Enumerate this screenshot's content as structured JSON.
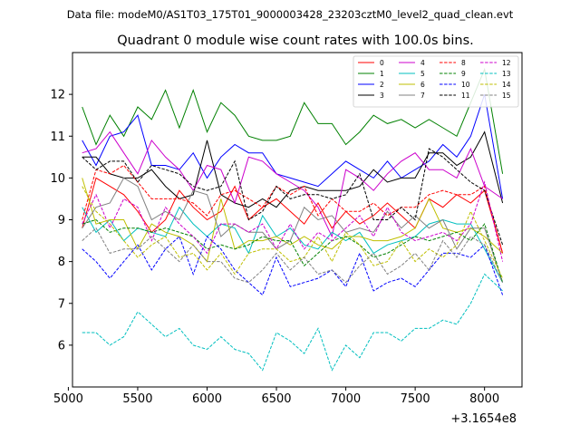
{
  "chart_data": {
    "type": "line",
    "suptitle": "Data file: modeM0/AS1T03_175T01_9000003428_23203cztM0_level2_quad_clean.evt",
    "title": "Quadrant 0 module wise count rates with 100.0s bins.",
    "xlabel": "",
    "ylabel": "",
    "x_offset_label": "+3.1654e8",
    "xlim": [
      5030,
      8270
    ],
    "ylim": [
      5.0,
      13.0
    ],
    "xticks": [
      5000,
      5500,
      6000,
      6500,
      7000,
      7500,
      8000
    ],
    "xtick_labels": [
      "5000",
      "5500",
      "6000",
      "6500",
      "7000",
      "7500",
      "8000"
    ],
    "yticks": [
      6,
      7,
      8,
      9,
      10,
      11,
      12
    ],
    "ytick_labels": [
      "6",
      "7",
      "8",
      "9",
      "10",
      "11",
      "12"
    ],
    "x": [
      5100,
      5200,
      5300,
      5400,
      5500,
      5600,
      5700,
      5800,
      5900,
      6000,
      6100,
      6200,
      6300,
      6400,
      6500,
      6600,
      6700,
      6800,
      6900,
      7000,
      7100,
      7200,
      7300,
      7400,
      7500,
      7600,
      7700,
      7800,
      7900,
      8000,
      8130
    ],
    "legend_position": "top-right",
    "series": [
      {
        "name": "0",
        "color": "#ff0000",
        "dash": "solid",
        "values": [
          8.8,
          10.0,
          9.8,
          9.6,
          9.2,
          8.7,
          9.0,
          9.7,
          9.3,
          9.0,
          9.2,
          9.8,
          9.0,
          9.3,
          9.5,
          9.2,
          8.9,
          9.4,
          8.8,
          9.2,
          8.9,
          9.1,
          9.4,
          9.1,
          8.8,
          9.5,
          9.3,
          9.6,
          9.4,
          9.7,
          8.2
        ]
      },
      {
        "name": "1",
        "color": "#008000",
        "dash": "solid",
        "values": [
          11.7,
          10.8,
          11.5,
          11.0,
          11.7,
          11.4,
          12.1,
          11.2,
          12.1,
          11.1,
          11.8,
          11.5,
          11.0,
          10.9,
          10.9,
          11.0,
          11.8,
          11.3,
          11.3,
          10.8,
          11.1,
          11.5,
          11.3,
          11.4,
          11.2,
          11.4,
          11.2,
          11.0,
          11.8,
          12.6,
          10.1
        ]
      },
      {
        "name": "2",
        "color": "#0000ff",
        "dash": "solid",
        "values": [
          10.9,
          10.3,
          11.0,
          11.1,
          11.5,
          10.3,
          10.3,
          10.2,
          10.6,
          10.0,
          10.5,
          10.8,
          10.6,
          10.6,
          10.1,
          10.0,
          9.9,
          9.8,
          10.1,
          10.4,
          10.2,
          10.0,
          10.4,
          10.0,
          10.2,
          10.4,
          10.8,
          10.5,
          11.0,
          12.0,
          9.5
        ]
      },
      {
        "name": "3",
        "color": "#000000",
        "dash": "solid",
        "values": [
          10.5,
          10.5,
          10.1,
          10.0,
          10.0,
          10.2,
          9.8,
          9.5,
          9.6,
          10.9,
          9.6,
          9.4,
          9.3,
          9.5,
          9.3,
          9.7,
          9.8,
          9.7,
          9.7,
          9.7,
          9.8,
          10.2,
          9.9,
          10.0,
          10.0,
          10.6,
          10.6,
          10.3,
          10.5,
          11.1,
          9.4
        ]
      },
      {
        "name": "4",
        "color": "#cc00cc",
        "dash": "solid",
        "values": [
          10.6,
          10.7,
          11.1,
          10.6,
          10.1,
          10.9,
          10.5,
          10.2,
          9.7,
          10.3,
          10.2,
          9.4,
          10.5,
          10.4,
          10.1,
          9.9,
          9.7,
          9.3,
          8.6,
          10.2,
          10.0,
          9.7,
          10.1,
          10.4,
          10.6,
          10.2,
          10.2,
          10.0,
          10.7,
          9.8,
          9.5
        ]
      },
      {
        "name": "5",
        "color": "#00bfbf",
        "dash": "solid",
        "values": [
          9.3,
          8.7,
          9.0,
          8.5,
          8.8,
          8.7,
          8.6,
          9.3,
          8.9,
          8.6,
          8.9,
          8.8,
          8.2,
          9.1,
          8.6,
          8.8,
          8.4,
          8.3,
          8.7,
          8.5,
          8.7,
          8.2,
          8.4,
          8.5,
          8.6,
          8.9,
          9.0,
          8.9,
          8.9,
          8.3,
          7.5
        ]
      },
      {
        "name": "6",
        "color": "#bfbf00",
        "dash": "solid",
        "values": [
          10.0,
          8.9,
          9.0,
          9.0,
          8.3,
          8.9,
          8.7,
          8.6,
          8.4,
          8.0,
          9.5,
          8.3,
          8.5,
          8.5,
          8.6,
          8.4,
          8.6,
          8.4,
          8.3,
          8.6,
          8.6,
          8.5,
          8.5,
          8.6,
          8.8,
          9.5,
          8.8,
          8.7,
          8.8,
          8.6,
          8.2
        ]
      },
      {
        "name": "7",
        "color": "#808080",
        "dash": "solid",
        "values": [
          8.8,
          9.3,
          9.4,
          10.0,
          9.8,
          9.0,
          9.2,
          9.0,
          9.7,
          9.6,
          8.6,
          8.9,
          8.7,
          8.7,
          8.3,
          8.5,
          9.3,
          9.0,
          9.1,
          8.7,
          8.8,
          8.7,
          9.2,
          8.8,
          9.1,
          8.8,
          9.0,
          8.3,
          8.8,
          8.8,
          7.5
        ]
      },
      {
        "name": "8",
        "color": "#ff0000",
        "dash": "dashed",
        "values": [
          9.0,
          10.2,
          10.1,
          10.3,
          9.9,
          9.5,
          9.5,
          9.5,
          9.4,
          9.1,
          9.6,
          9.7,
          9.5,
          9.3,
          9.8,
          9.6,
          9.8,
          9.1,
          9.5,
          9.2,
          9.2,
          9.4,
          9.1,
          9.3,
          9.3,
          9.6,
          9.7,
          9.6,
          9.6,
          9.8,
          8.2
        ]
      },
      {
        "name": "9",
        "color": "#008000",
        "dash": "dashed",
        "values": [
          8.9,
          9.0,
          8.7,
          8.8,
          8.8,
          8.7,
          8.8,
          8.7,
          8.6,
          8.3,
          8.4,
          8.3,
          8.4,
          8.6,
          8.5,
          8.5,
          7.9,
          8.2,
          8.5,
          8.6,
          8.4,
          8.1,
          8.2,
          8.4,
          8.6,
          8.5,
          8.6,
          8.7,
          8.5,
          8.9,
          7.5
        ]
      },
      {
        "name": "10",
        "color": "#0000ff",
        "dash": "dashed",
        "values": [
          8.3,
          8.0,
          7.6,
          8.0,
          8.4,
          7.8,
          8.3,
          8.6,
          7.7,
          8.6,
          8.3,
          7.8,
          7.5,
          7.2,
          8.1,
          7.4,
          7.5,
          7.6,
          7.8,
          7.4,
          8.2,
          7.3,
          7.5,
          7.6,
          7.4,
          7.8,
          8.2,
          8.2,
          8.1,
          8.4,
          7.2
        ]
      },
      {
        "name": "11",
        "color": "#000000",
        "dash": "dashed",
        "values": [
          10.5,
          10.2,
          10.4,
          10.4,
          9.9,
          10.3,
          10.2,
          10.1,
          9.8,
          9.7,
          9.8,
          10.4,
          9.0,
          9.2,
          9.8,
          9.5,
          9.6,
          9.6,
          9.5,
          9.6,
          10.1,
          9.0,
          9.0,
          9.3,
          9.0,
          10.7,
          10.5,
          10.2,
          9.9,
          9.7,
          8.4
        ]
      },
      {
        "name": "12",
        "color": "#cc00cc",
        "dash": "dashed",
        "values": [
          8.9,
          9.6,
          8.8,
          9.5,
          9.3,
          8.5,
          9.3,
          8.9,
          8.6,
          8.2,
          8.9,
          8.9,
          8.7,
          8.9,
          8.3,
          8.9,
          8.3,
          8.7,
          8.5,
          8.8,
          9.1,
          8.6,
          9.3,
          8.7,
          8.5,
          8.6,
          8.7,
          8.5,
          8.9,
          9.9,
          8.0
        ]
      },
      {
        "name": "13",
        "color": "#00bfbf",
        "dash": "dashed",
        "values": [
          6.3,
          6.3,
          6.0,
          6.2,
          6.8,
          6.5,
          6.2,
          6.4,
          6.0,
          5.9,
          6.2,
          5.9,
          5.8,
          5.4,
          6.3,
          6.1,
          5.8,
          6.4,
          5.4,
          6.0,
          5.7,
          6.3,
          6.3,
          6.1,
          6.4,
          6.4,
          6.6,
          6.5,
          7.0,
          7.7,
          7.3
        ]
      },
      {
        "name": "14",
        "color": "#bfbf00",
        "dash": "dashed",
        "values": [
          9.8,
          9.2,
          8.9,
          8.5,
          8.1,
          8.4,
          8.6,
          8.1,
          8.2,
          7.8,
          8.2,
          7.7,
          8.2,
          8.3,
          8.3,
          8.0,
          8.1,
          8.6,
          8.0,
          8.7,
          8.4,
          7.9,
          8.0,
          8.5,
          8.0,
          8.3,
          8.1,
          8.4,
          9.2,
          8.5,
          7.6
        ]
      },
      {
        "name": "15",
        "color": "#808080",
        "dash": "dashed",
        "values": [
          8.5,
          8.8,
          8.2,
          8.3,
          8.3,
          8.6,
          8.3,
          8.0,
          8.4,
          8.0,
          8.0,
          7.6,
          7.5,
          7.8,
          8.2,
          7.8,
          8.1,
          7.7,
          7.8,
          7.5,
          7.9,
          8.2,
          7.7,
          7.9,
          8.2,
          7.8,
          8.5,
          8.1,
          8.6,
          8.4,
          7.5
        ]
      }
    ]
  }
}
